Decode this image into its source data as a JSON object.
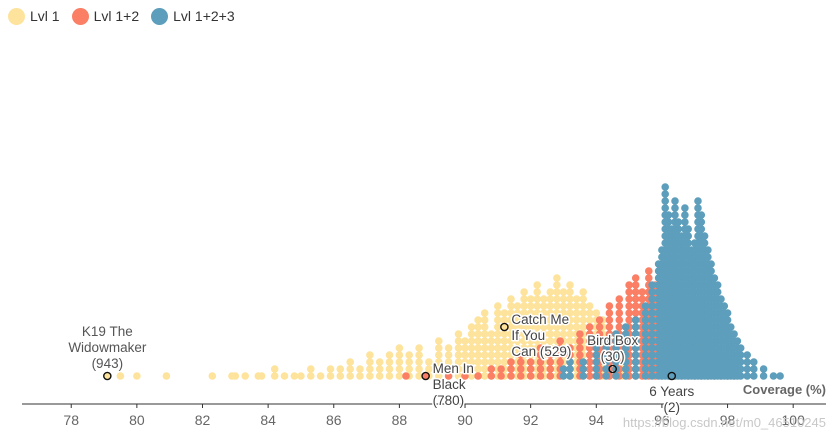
{
  "chart_data": {
    "type": "scatter",
    "subtype": "dot-histogram (beeswarm)",
    "xlabel": "Coverage (%)",
    "xlim": [
      76.5,
      101
    ],
    "x_ticks": [
      78,
      80,
      82,
      84,
      86,
      88,
      90,
      92,
      94,
      96,
      98,
      100
    ],
    "bin_width": 0.1,
    "series": [
      {
        "name": "Lvl 1",
        "color": "#fde39c",
        "points": [
          [
            79.1,
            1
          ],
          [
            79.5,
            1
          ],
          [
            80.0,
            1
          ],
          [
            80.9,
            1
          ],
          [
            82.3,
            1
          ],
          [
            82.9,
            1
          ],
          [
            83.0,
            1
          ],
          [
            83.3,
            1
          ],
          [
            83.7,
            1
          ],
          [
            83.8,
            1
          ],
          [
            84.2,
            2
          ],
          [
            84.5,
            1
          ],
          [
            84.8,
            1
          ],
          [
            85.0,
            1
          ],
          [
            85.3,
            2
          ],
          [
            85.6,
            1
          ],
          [
            85.9,
            2
          ],
          [
            86.2,
            2
          ],
          [
            86.5,
            3
          ],
          [
            86.8,
            2
          ],
          [
            87.1,
            4
          ],
          [
            87.4,
            3
          ],
          [
            87.7,
            4
          ],
          [
            88.0,
            5
          ],
          [
            88.3,
            4
          ],
          [
            88.6,
            5
          ],
          [
            88.9,
            3
          ],
          [
            89.2,
            6
          ],
          [
            89.5,
            5
          ],
          [
            89.8,
            7
          ],
          [
            90.0,
            6
          ],
          [
            90.2,
            8
          ],
          [
            90.4,
            9
          ],
          [
            90.6,
            10
          ],
          [
            90.8,
            7
          ],
          [
            91.0,
            11
          ],
          [
            91.2,
            10
          ],
          [
            91.4,
            12
          ],
          [
            91.6,
            11
          ],
          [
            91.8,
            13
          ],
          [
            92.0,
            12
          ],
          [
            92.2,
            14
          ],
          [
            92.4,
            12
          ],
          [
            92.6,
            13
          ],
          [
            92.8,
            15
          ],
          [
            93.0,
            13
          ],
          [
            93.2,
            14
          ],
          [
            93.4,
            12
          ],
          [
            93.6,
            13
          ],
          [
            93.8,
            11
          ],
          [
            94.0,
            10
          ],
          [
            94.2,
            9
          ],
          [
            94.4,
            8
          ],
          [
            94.6,
            7
          ],
          [
            94.8,
            5
          ],
          [
            95.0,
            4
          ],
          [
            95.2,
            3
          ],
          [
            95.4,
            2
          ],
          [
            95.6,
            2
          ],
          [
            95.8,
            1
          ]
        ]
      },
      {
        "name": "Lvl 1+2",
        "color": "#fa7f65",
        "points": [
          [
            88.2,
            1
          ],
          [
            88.8,
            1
          ],
          [
            89.5,
            1
          ],
          [
            90.0,
            1
          ],
          [
            90.4,
            1
          ],
          [
            90.8,
            2
          ],
          [
            91.1,
            2
          ],
          [
            91.4,
            3
          ],
          [
            91.7,
            4
          ],
          [
            92.0,
            3
          ],
          [
            92.3,
            5
          ],
          [
            92.6,
            4
          ],
          [
            92.9,
            6
          ],
          [
            93.2,
            5
          ],
          [
            93.5,
            7
          ],
          [
            93.8,
            8
          ],
          [
            94.1,
            9
          ],
          [
            94.4,
            11
          ],
          [
            94.7,
            12
          ],
          [
            95.0,
            14
          ],
          [
            95.2,
            15
          ],
          [
            95.4,
            13
          ],
          [
            95.6,
            16
          ],
          [
            95.8,
            14
          ],
          [
            96.0,
            17
          ],
          [
            96.2,
            16
          ],
          [
            96.4,
            15
          ],
          [
            96.6,
            13
          ],
          [
            96.8,
            12
          ],
          [
            97.0,
            11
          ],
          [
            97.2,
            9
          ],
          [
            97.4,
            8
          ],
          [
            97.6,
            6
          ],
          [
            97.8,
            4
          ],
          [
            98.0,
            3
          ],
          [
            98.2,
            2
          ]
        ]
      },
      {
        "name": "Lvl 1+2+3",
        "color": "#5c9ebb",
        "points": [
          [
            93.0,
            2
          ],
          [
            93.2,
            3
          ],
          [
            93.6,
            3
          ],
          [
            94.0,
            5
          ],
          [
            94.3,
            6
          ],
          [
            94.6,
            7
          ],
          [
            94.9,
            8
          ],
          [
            95.2,
            9
          ],
          [
            95.5,
            11
          ],
          [
            95.7,
            14
          ],
          [
            95.9,
            17
          ],
          [
            96.0,
            19
          ],
          [
            96.1,
            28
          ],
          [
            96.2,
            24
          ],
          [
            96.3,
            22
          ],
          [
            96.4,
            26
          ],
          [
            96.5,
            23
          ],
          [
            96.6,
            21
          ],
          [
            96.7,
            25
          ],
          [
            96.8,
            22
          ],
          [
            96.9,
            19
          ],
          [
            97.0,
            20
          ],
          [
            97.1,
            26
          ],
          [
            97.2,
            24
          ],
          [
            97.3,
            21
          ],
          [
            97.4,
            19
          ],
          [
            97.5,
            17
          ],
          [
            97.6,
            15
          ],
          [
            97.7,
            14
          ],
          [
            97.8,
            12
          ],
          [
            97.9,
            11
          ],
          [
            98.0,
            10
          ],
          [
            98.1,
            8
          ],
          [
            98.2,
            7
          ],
          [
            98.3,
            6
          ],
          [
            98.4,
            5
          ],
          [
            98.6,
            4
          ],
          [
            98.8,
            3
          ],
          [
            99.1,
            2
          ],
          [
            99.4,
            1
          ],
          [
            99.6,
            1
          ]
        ]
      }
    ],
    "annotations": [
      {
        "label": "K19 The\nWidowmaker\n(943)",
        "x": 79.1,
        "level": 1,
        "anchor": "middle",
        "pos": "above"
      },
      {
        "label": "Men In\nBlack\n(780)",
        "x": 88.8,
        "level": 1,
        "anchor": "start",
        "pos": "right-down"
      },
      {
        "label": "Catch Me\nIf You\nCan (529)",
        "x": 91.2,
        "level": 8,
        "anchor": "start",
        "pos": "right-down"
      },
      {
        "label": "Bird Box\n(30)",
        "x": 94.5,
        "level": 2,
        "anchor": "middle",
        "pos": "above"
      },
      {
        "label": "6 Years\n(2)",
        "x": 96.3,
        "level": 1,
        "anchor": "middle",
        "pos": "below"
      }
    ]
  },
  "legend": [
    {
      "label": "Lvl 1",
      "color": "#fde39c"
    },
    {
      "label": "Lvl 1+2",
      "color": "#fa7f65"
    },
    {
      "label": "Lvl 1+2+3",
      "color": "#5c9ebb"
    }
  ],
  "watermark": "https://blog.csdn.net/m0_46510245"
}
